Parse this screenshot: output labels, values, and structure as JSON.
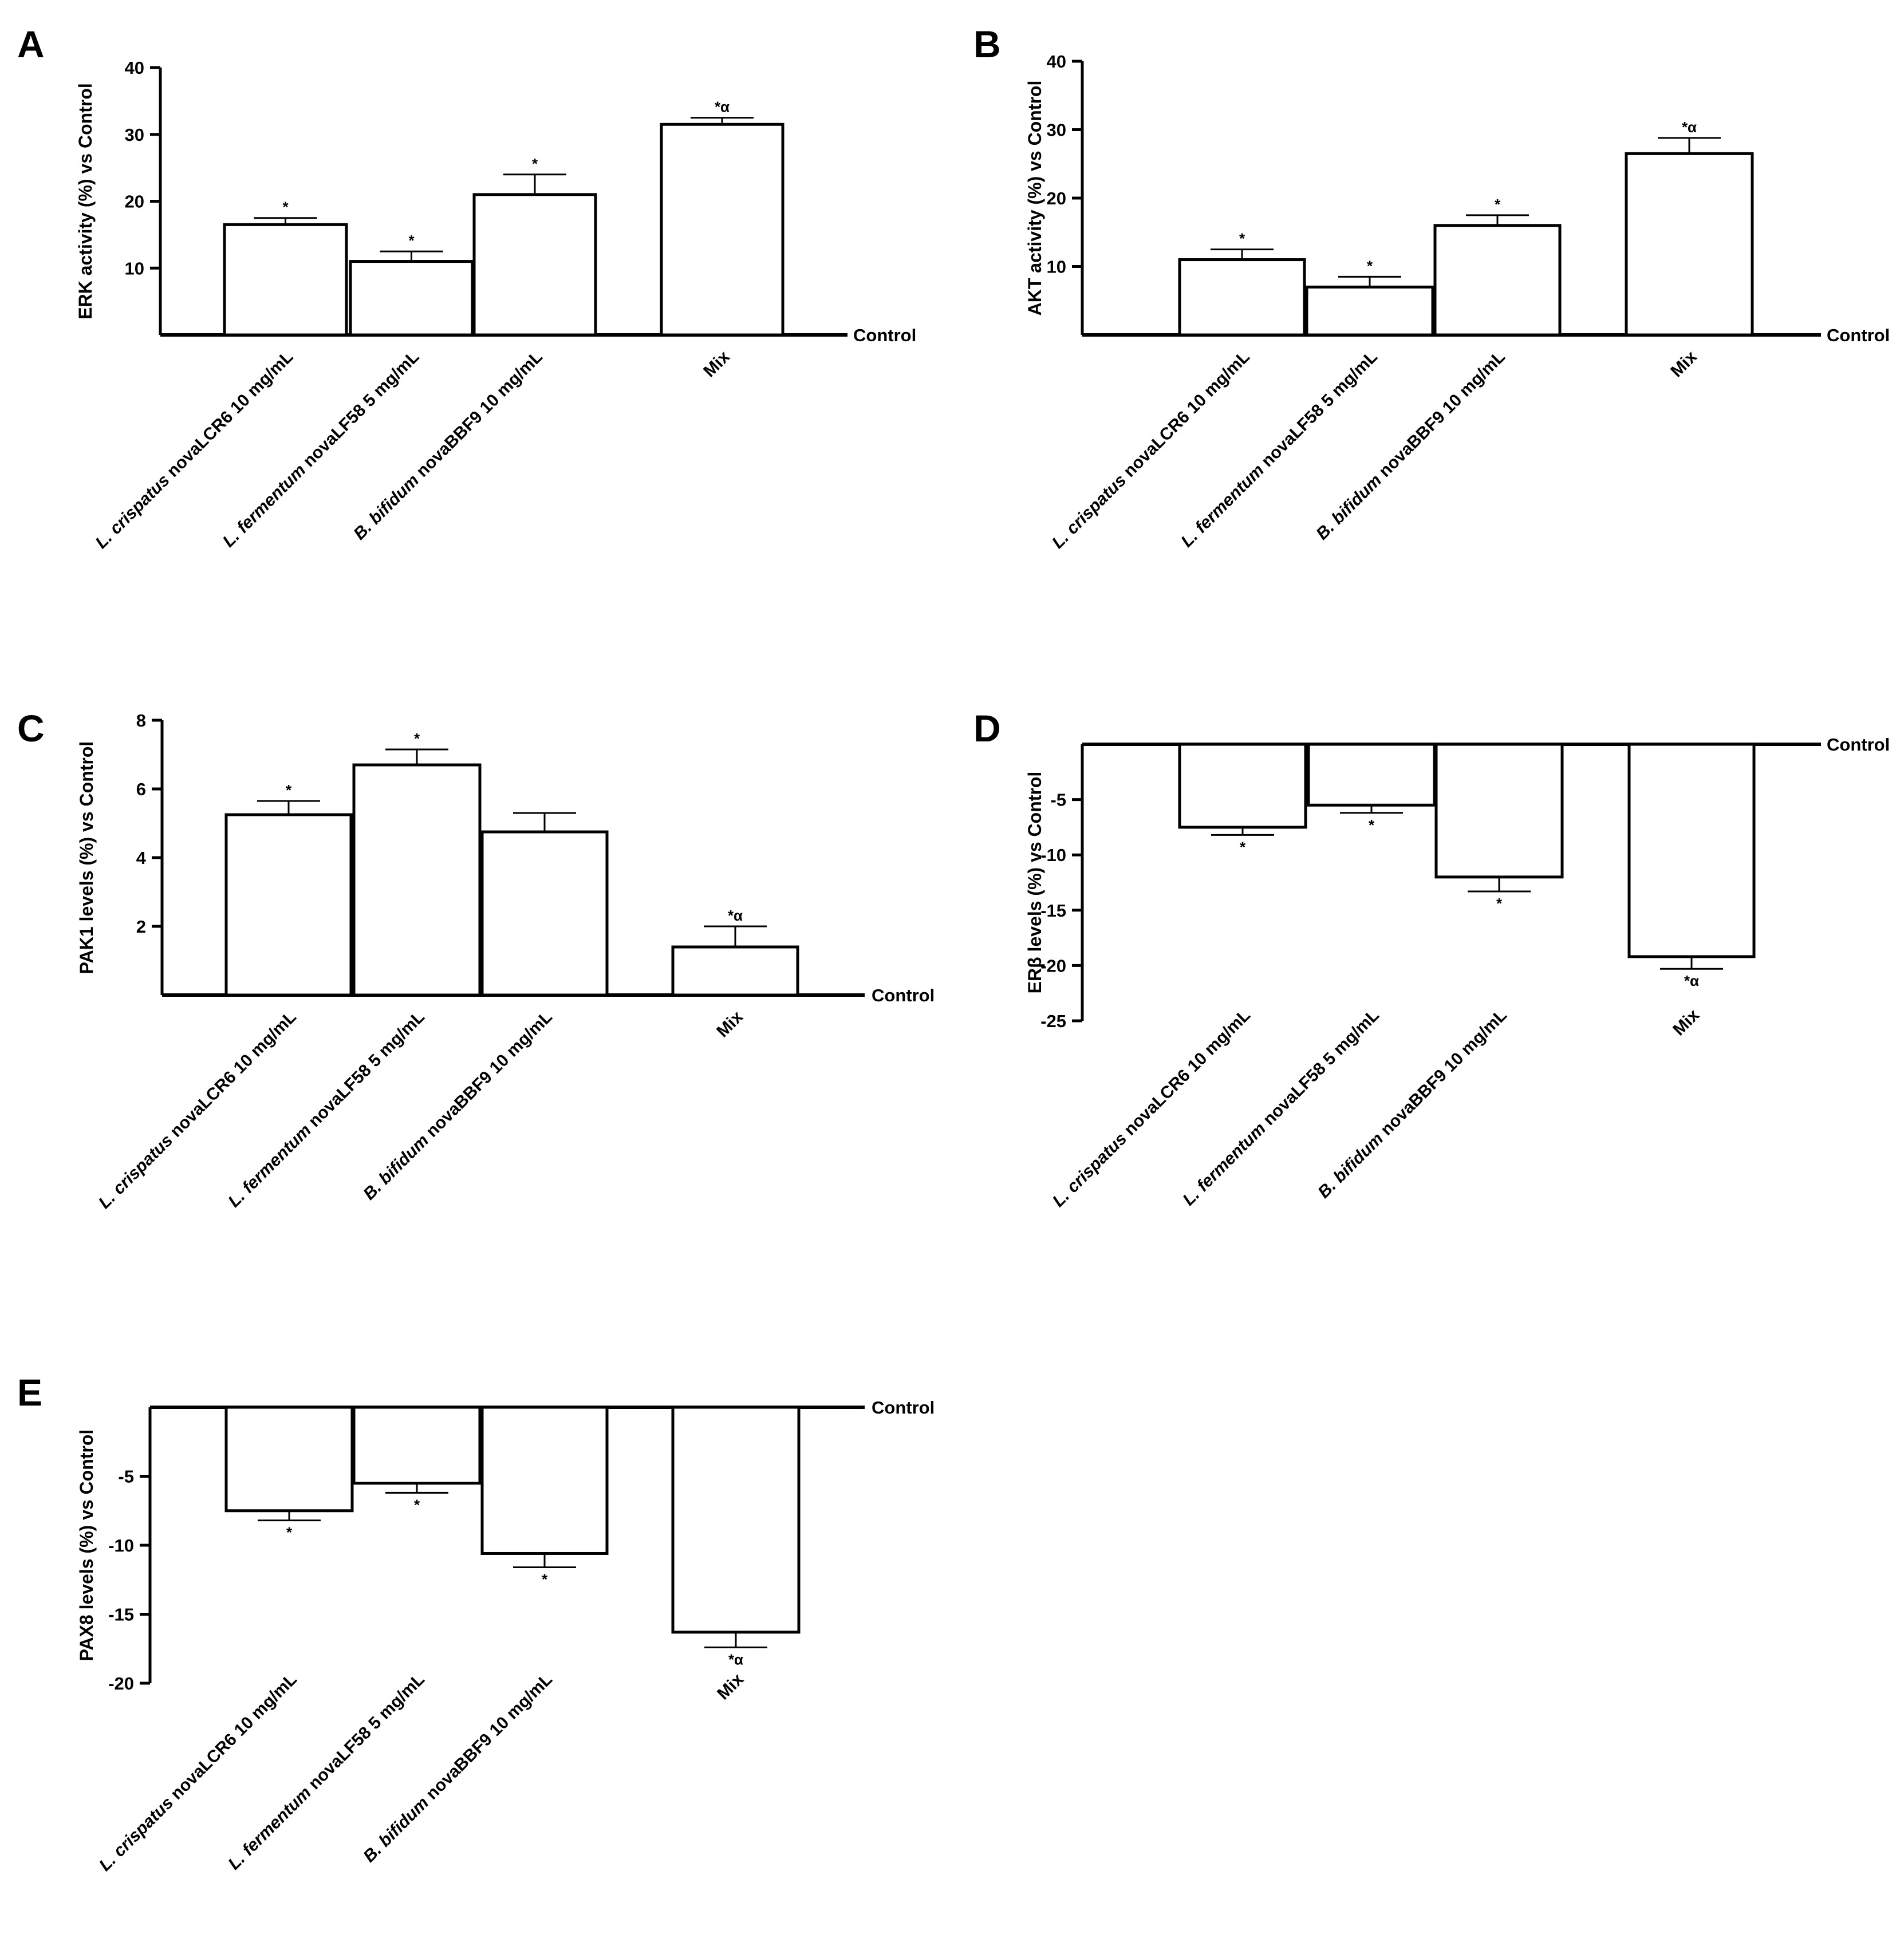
{
  "chart_data": [
    {
      "panel": "A",
      "type": "bar",
      "ylabel": "ERK activity (%) vs Control",
      "reference_label": "Control",
      "categories": [
        {
          "italic": "L. crispatus",
          "rest": " novaLCR6 10 mg/mL"
        },
        {
          "italic": "L. fermentum",
          "rest": " novaLF58 5 mg/mL"
        },
        {
          "italic": "B. bifidum",
          "rest": " novaBBF9 10 mg/mL"
        },
        {
          "italic": "",
          "rest": "Mix"
        }
      ],
      "values": [
        16.5,
        11,
        21,
        31.5
      ],
      "errors": [
        1,
        1.5,
        3,
        1
      ],
      "significance": [
        "*",
        "*",
        "*",
        "*α"
      ],
      "ylim": [
        0,
        40
      ],
      "yticks": [
        10,
        20,
        30,
        40
      ],
      "ytick_labels": [
        "10",
        "20",
        "30",
        "40"
      ]
    },
    {
      "panel": "B",
      "type": "bar",
      "ylabel": "AKT activity (%) vs Control",
      "reference_label": "Control",
      "categories": [
        {
          "italic": "L. crispatus",
          "rest": " novaLCR6 10 mg/mL"
        },
        {
          "italic": "L. fermentum",
          "rest": " novaLF58 5 mg/mL"
        },
        {
          "italic": "B. bifidum",
          "rest": " novaBBF9 10 mg/mL"
        },
        {
          "italic": "",
          "rest": "Mix"
        }
      ],
      "values": [
        11,
        7,
        16,
        26.5
      ],
      "errors": [
        1.5,
        1.5,
        1.5,
        2.3
      ],
      "significance": [
        "*",
        "*",
        "*",
        "*α"
      ],
      "ylim": [
        0,
        40
      ],
      "yticks": [
        10,
        20,
        30,
        40
      ],
      "ytick_labels": [
        "10",
        "20",
        "30",
        "40"
      ]
    },
    {
      "panel": "C",
      "type": "bar",
      "ylabel": "PAK1 levels (%) vs Control",
      "reference_label": "Control",
      "categories": [
        {
          "italic": "L. crispatus",
          "rest": " novaLCR6 10 mg/mL"
        },
        {
          "italic": "L. fermentum",
          "rest": " novaLF58 5 mg/mL"
        },
        {
          "italic": "B. bifidum",
          "rest": " novaBBF9 10 mg/mL"
        },
        {
          "italic": "",
          "rest": "Mix"
        }
      ],
      "values": [
        5.25,
        6.7,
        4.75,
        1.4
      ],
      "errors": [
        0.4,
        0.45,
        0.55,
        0.6
      ],
      "significance": [
        "*",
        "*",
        "",
        "*α"
      ],
      "ylim": [
        0,
        8
      ],
      "yticks": [
        2,
        4,
        6,
        8
      ],
      "ytick_labels": [
        "2",
        "4",
        "6",
        "8"
      ]
    },
    {
      "panel": "D",
      "type": "bar",
      "ylabel": "ERβ levels (%) vs Control",
      "reference_label": "Control",
      "categories": [
        {
          "italic": "L. crispatus",
          "rest": " novaLCR6 10 mg/mL"
        },
        {
          "italic": "L. fermentum",
          "rest": " novaLF58 5 mg/mL"
        },
        {
          "italic": "B. bifidum",
          "rest": " novaBBF9 10 mg/mL"
        },
        {
          "italic": "",
          "rest": "Mix"
        }
      ],
      "values": [
        -7.5,
        -5.5,
        -12,
        -19.2
      ],
      "errors": [
        0.7,
        0.7,
        1.3,
        1.1
      ],
      "significance": [
        "*",
        "*",
        "*",
        "*α"
      ],
      "ylim": [
        -25,
        0
      ],
      "yticks": [
        -5,
        -10,
        -15,
        -20,
        -25
      ],
      "ytick_labels": [
        "-5",
        "-10",
        "-15",
        "-20",
        "-25"
      ]
    },
    {
      "panel": "E",
      "type": "bar",
      "ylabel": "PAX8 levels (%) vs Control",
      "reference_label": "Control",
      "categories": [
        {
          "italic": "L. crispatus",
          "rest": " novaLCR6 10 mg/mL"
        },
        {
          "italic": "L. fermentum",
          "rest": " novaLF58 5 mg/mL"
        },
        {
          "italic": "B. bifidum",
          "rest": " novaBBF9 10 mg/mL"
        },
        {
          "italic": "",
          "rest": "Mix"
        }
      ],
      "values": [
        -7.5,
        -5.5,
        -10.6,
        -16.3
      ],
      "errors": [
        0.7,
        0.7,
        1.0,
        1.1
      ],
      "significance": [
        "*",
        "*",
        "*",
        "*α"
      ],
      "ylim": [
        -20,
        0
      ],
      "yticks": [
        -5,
        -10,
        -15,
        -20
      ],
      "ytick_labels": [
        "-5",
        "-10",
        "-15",
        "-20"
      ]
    }
  ]
}
